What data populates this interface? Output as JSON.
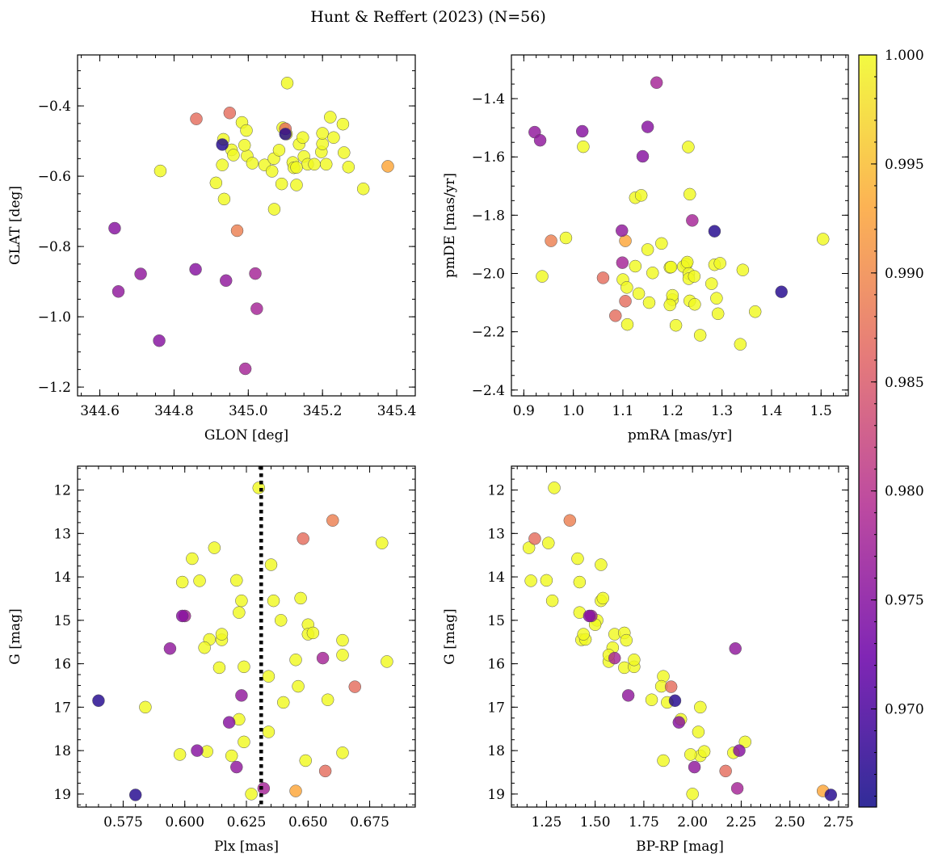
{
  "chart_data": {
    "type": "scatter",
    "title": "Hunt & Reffert (2023) (N=56)",
    "colorbar": {
      "range": [
        0.9655,
        1.0
      ],
      "ticks": [
        0.97,
        0.975,
        0.98,
        0.985,
        0.99,
        0.995,
        1.0
      ],
      "tick_labels": [
        "0.970",
        "0.975",
        "0.980",
        "0.985",
        "0.990",
        "0.995",
        "1.000"
      ],
      "colormap": "plasma",
      "colors": [
        "#0d0887",
        "#6a00a8",
        "#b12a90",
        "#e16462",
        "#fca636",
        "#f0f921"
      ]
    },
    "panels": [
      {
        "id": "glon-glat",
        "xlabel": "GLON [deg]",
        "ylabel": "GLAT [deg]",
        "xlim": [
          344.54,
          345.45
        ],
        "ylim": [
          -1.225,
          -0.255
        ],
        "xticks": [
          344.6,
          344.8,
          345.0,
          345.2,
          345.4
        ],
        "xtick_labels": [
          "344.6",
          "344.8",
          "345.0",
          "345.2",
          "345.4"
        ],
        "yticks": [
          -1.2,
          -1.0,
          -0.8,
          -0.6,
          -0.4
        ],
        "ytick_labels": [
          "−1.2",
          "−1.0",
          "−0.8",
          "−0.6",
          "−0.4"
        ],
        "x_minor": 0.05,
        "y_minor": 0.05
      },
      {
        "id": "pm",
        "xlabel": "pmRA [mas/yr]",
        "ylabel": "pmDE [mas/yr]",
        "xlim": [
          0.875,
          1.555
        ],
        "ylim": [
          -2.42,
          -1.25
        ],
        "xticks": [
          0.9,
          1.0,
          1.1,
          1.2,
          1.3,
          1.4,
          1.5
        ],
        "xtick_labels": [
          "0.9",
          "1.0",
          "1.1",
          "1.2",
          "1.3",
          "1.4",
          "1.5"
        ],
        "yticks": [
          -2.4,
          -2.2,
          -2.0,
          -1.8,
          -1.6,
          -1.4
        ],
        "ytick_labels": [
          "−2.4",
          "−2.2",
          "−2.0",
          "−1.8",
          "−1.6",
          "−1.4"
        ],
        "x_minor": 0.025,
        "y_minor": 0.05
      },
      {
        "id": "plx-g",
        "xlabel": "Plx [mas]",
        "ylabel": "G [mag]",
        "xlim": [
          0.5565,
          0.6935
        ],
        "ylim": [
          19.3,
          11.45
        ],
        "xticks": [
          0.575,
          0.6,
          0.625,
          0.65,
          0.675
        ],
        "xtick_labels": [
          "0.575",
          "0.600",
          "0.625",
          "0.650",
          "0.675"
        ],
        "yticks": [
          12,
          13,
          14,
          15,
          16,
          17,
          18,
          19
        ],
        "ytick_labels": [
          "12",
          "13",
          "14",
          "15",
          "16",
          "17",
          "18",
          "19"
        ],
        "x_minor": 0.005,
        "y_minor": 0.25,
        "vline": 0.631
      },
      {
        "id": "cmd",
        "xlabel": "BP-RP [mag]",
        "ylabel": "G [mag]",
        "xlim": [
          1.07,
          2.8
        ],
        "ylim": [
          19.3,
          11.45
        ],
        "xticks": [
          1.25,
          1.5,
          1.75,
          2.0,
          2.25,
          2.5,
          2.75
        ],
        "xtick_labels": [
          "1.25",
          "1.50",
          "1.75",
          "2.00",
          "2.25",
          "2.50",
          "2.75"
        ],
        "yticks": [
          12,
          13,
          14,
          15,
          16,
          17,
          18,
          19
        ],
        "ytick_labels": [
          "12",
          "13",
          "14",
          "15",
          "16",
          "17",
          "18",
          "19"
        ],
        "x_minor": 0.05,
        "y_minor": 0.25
      }
    ],
    "stars": [
      {
        "glon": 345.105,
        "glat": -0.335,
        "pmra": 1.228,
        "pmde": -1.968,
        "plx": 0.63,
        "g": 11.95,
        "bprp": 1.29,
        "p": 1.0
      },
      {
        "glon": 344.97,
        "glat": -0.755,
        "pmra": 0.955,
        "pmde": -1.888,
        "plx": 0.66,
        "g": 12.7,
        "bprp": 1.37,
        "p": 0.989
      },
      {
        "glon": 344.95,
        "glat": -0.42,
        "pmra": 1.085,
        "pmde": -2.145,
        "plx": 0.648,
        "g": 13.12,
        "bprp": 1.19,
        "p": 0.987
      },
      {
        "glon": 345.376,
        "glat": -0.572,
        "pmra": 1.105,
        "pmde": -1.888,
        "plx": 0.645,
        "g": 18.93,
        "bprp": 2.67,
        "p": 0.993
      },
      {
        "glon": 344.64,
        "glat": -0.748,
        "pmra": 1.14,
        "pmde": -1.598,
        "plx": 0.599,
        "g": 14.9,
        "bprp": 1.47,
        "p": 0.975
      },
      {
        "glon": 344.65,
        "glat": -0.928,
        "pmra": 0.922,
        "pmde": -1.515,
        "plx": 0.594,
        "g": 15.65,
        "bprp": 2.22,
        "p": 0.976
      },
      {
        "glon": 344.71,
        "glat": -0.878,
        "pmra": 0.933,
        "pmde": -1.543,
        "plx": 0.623,
        "g": 16.73,
        "bprp": 1.67,
        "p": 0.976
      },
      {
        "glon": 344.76,
        "glat": -1.068,
        "pmra": 1.018,
        "pmde": -1.512,
        "plx": 0.618,
        "g": 17.35,
        "bprp": 1.93,
        "p": 0.975
      },
      {
        "glon": 344.858,
        "glat": -0.865,
        "pmra": 1.15,
        "pmde": -1.497,
        "plx": 0.605,
        "g": 18.0,
        "bprp": 2.24,
        "p": 0.975
      },
      {
        "glon": 344.94,
        "glat": -0.897,
        "pmra": 1.098,
        "pmde": -1.853,
        "plx": 0.621,
        "g": 18.38,
        "bprp": 2.01,
        "p": 0.976
      },
      {
        "glon": 345.019,
        "glat": -0.877,
        "pmra": 1.168,
        "pmde": -1.345,
        "plx": 0.656,
        "g": 15.87,
        "bprp": 1.6,
        "p": 0.978
      },
      {
        "glon": 345.023,
        "glat": -0.977,
        "pmra": 1.099,
        "pmde": -1.963,
        "plx": 0.632,
        "g": 18.87,
        "bprp": 2.23,
        "p": 0.978
      },
      {
        "glon": 344.992,
        "glat": -1.148,
        "pmra": 1.24,
        "pmde": -1.818,
        "plx": 0.6,
        "g": 14.9,
        "bprp": 1.48,
        "p": 0.978
      },
      {
        "glon": 345.1,
        "glat": -0.48,
        "pmra": 1.285,
        "pmde": -1.855,
        "plx": 0.58,
        "g": 19.02,
        "bprp": 2.71,
        "p": 0.967
      },
      {
        "glon": 344.93,
        "glat": -0.51,
        "pmra": 1.42,
        "pmde": -2.063,
        "plx": 0.565,
        "g": 16.85,
        "bprp": 1.91,
        "p": 0.967
      },
      {
        "glon": 345.1,
        "glat": -0.465,
        "pmra": 1.105,
        "pmde": -2.095,
        "plx": 0.669,
        "g": 16.53,
        "bprp": 1.89,
        "p": 0.987
      },
      {
        "glon": 344.86,
        "glat": -0.437,
        "pmra": 1.06,
        "pmde": -2.015,
        "plx": 0.657,
        "g": 18.47,
        "bprp": 2.17,
        "p": 0.987
      },
      {
        "glon": 344.763,
        "glat": -0.585,
        "pmra": 1.02,
        "pmde": -1.565,
        "plx": 0.68,
        "g": 13.22,
        "bprp": 1.26,
        "p": 1.0
      },
      {
        "glon": 344.913,
        "glat": -0.619,
        "pmra": 0.937,
        "pmde": -2.01,
        "plx": 0.682,
        "g": 15.95,
        "bprp": 1.57,
        "p": 1.0
      },
      {
        "glon": 344.935,
        "glat": -0.665,
        "pmra": 0.985,
        "pmde": -1.878,
        "plx": 0.584,
        "g": 17.0,
        "bprp": 2.04,
        "p": 1.0
      },
      {
        "glon": 344.93,
        "glat": -0.568,
        "pmra": 1.125,
        "pmde": -1.74,
        "plx": 0.603,
        "g": 13.58,
        "bprp": 1.41,
        "p": 1.0
      },
      {
        "glon": 344.933,
        "glat": -0.495,
        "pmra": 1.137,
        "pmde": -1.732,
        "plx": 0.599,
        "g": 14.12,
        "bprp": 1.42,
        "p": 1.0
      },
      {
        "glon": 344.955,
        "glat": -0.525,
        "pmra": 1.125,
        "pmde": -1.975,
        "plx": 0.612,
        "g": 13.33,
        "bprp": 1.16,
        "p": 1.0
      },
      {
        "glon": 344.96,
        "glat": -0.54,
        "pmra": 1.109,
        "pmde": -2.175,
        "plx": 0.606,
        "g": 14.09,
        "bprp": 1.17,
        "p": 1.0
      },
      {
        "glon": 344.983,
        "glat": -0.447,
        "pmra": 1.15,
        "pmde": -1.918,
        "plx": 0.621,
        "g": 14.08,
        "bprp": 1.25,
        "p": 1.0
      },
      {
        "glon": 344.997,
        "glat": -0.542,
        "pmra": 1.178,
        "pmde": -1.897,
        "plx": 0.623,
        "g": 14.55,
        "bprp": 1.28,
        "p": 1.0
      },
      {
        "glon": 345.011,
        "glat": -0.563,
        "pmra": 1.1,
        "pmde": -2.021,
        "plx": 0.636,
        "g": 14.55,
        "bprp": 1.53,
        "p": 1.0
      },
      {
        "glon": 345.044,
        "glat": -0.568,
        "pmra": 1.108,
        "pmde": -2.048,
        "plx": 0.647,
        "g": 14.49,
        "bprp": 1.54,
        "p": 1.0
      },
      {
        "glon": 345.064,
        "glat": -0.586,
        "pmra": 1.132,
        "pmde": -2.069,
        "plx": 0.635,
        "g": 13.72,
        "bprp": 1.53,
        "p": 1.0
      },
      {
        "glon": 345.069,
        "glat": -0.55,
        "pmra": 1.16,
        "pmde": -1.998,
        "plx": 0.622,
        "g": 14.82,
        "bprp": 1.42,
        "p": 1.0
      },
      {
        "glon": 345.083,
        "glat": -0.526,
        "pmra": 1.195,
        "pmde": -1.979,
        "plx": 0.639,
        "g": 15.0,
        "bprp": 1.51,
        "p": 1.0
      },
      {
        "glon": 345.093,
        "glat": -0.462,
        "pmra": 1.197,
        "pmde": -1.978,
        "plx": 0.65,
        "g": 15.1,
        "bprp": 1.5,
        "p": 1.0
      },
      {
        "glon": 345.103,
        "glat": -0.48,
        "pmra": 1.2,
        "pmde": -2.09,
        "plx": 0.615,
        "g": 15.45,
        "bprp": 1.43,
        "p": 1.0
      },
      {
        "glon": 345.12,
        "glat": -0.561,
        "pmra": 1.222,
        "pmde": -1.976,
        "plx": 0.61,
        "g": 15.44,
        "bprp": 1.45,
        "p": 1.0
      },
      {
        "glon": 345.123,
        "glat": -0.576,
        "pmra": 1.23,
        "pmde": -1.961,
        "plx": 0.615,
        "g": 15.32,
        "bprp": 1.44,
        "p": 1.0
      },
      {
        "glon": 345.13,
        "glat": -0.625,
        "pmra": 1.2,
        "pmde": -2.075,
        "plx": 0.65,
        "g": 15.32,
        "bprp": 1.6,
        "p": 1.0
      },
      {
        "glon": 345.137,
        "glat": -0.509,
        "pmra": 1.233,
        "pmde": -2.0,
        "plx": 0.608,
        "g": 15.63,
        "bprp": 1.59,
        "p": 1.0
      },
      {
        "glon": 345.147,
        "glat": -0.49,
        "pmra": 1.285,
        "pmde": -1.97,
        "plx": 0.652,
        "g": 15.29,
        "bprp": 1.65,
        "p": 1.0
      },
      {
        "glon": 345.15,
        "glat": -0.544,
        "pmra": 1.296,
        "pmde": -1.965,
        "plx": 0.664,
        "g": 15.46,
        "bprp": 1.66,
        "p": 1.0
      },
      {
        "glon": 345.16,
        "glat": -0.566,
        "pmra": 1.233,
        "pmde": -2.018,
        "plx": 0.664,
        "g": 15.8,
        "bprp": 1.57,
        "p": 1.0
      },
      {
        "glon": 345.178,
        "glat": -0.566,
        "pmra": 1.244,
        "pmde": -2.01,
        "plx": 0.614,
        "g": 16.09,
        "bprp": 1.65,
        "p": 1.0
      },
      {
        "glon": 345.197,
        "glat": -0.531,
        "pmra": 1.235,
        "pmde": -2.094,
        "plx": 0.624,
        "g": 16.07,
        "bprp": 1.7,
        "p": 1.0
      },
      {
        "glon": 345.2,
        "glat": -0.508,
        "pmra": 1.245,
        "pmde": -2.106,
        "plx": 0.645,
        "g": 15.91,
        "bprp": 1.7,
        "p": 1.0
      },
      {
        "glon": 345.2,
        "glat": -0.478,
        "pmra": 1.195,
        "pmde": -2.108,
        "plx": 0.634,
        "g": 16.29,
        "bprp": 1.85,
        "p": 1.0
      },
      {
        "glon": 345.21,
        "glat": -0.566,
        "pmra": 1.207,
        "pmde": -2.178,
        "plx": 0.646,
        "g": 16.52,
        "bprp": 1.84,
        "p": 1.0
      },
      {
        "glon": 345.221,
        "glat": -0.432,
        "pmra": 1.153,
        "pmde": -2.1,
        "plx": 0.658,
        "g": 16.83,
        "bprp": 1.79,
        "p": 1.0
      },
      {
        "glon": 345.23,
        "glat": -0.49,
        "pmra": 1.289,
        "pmde": -2.085,
        "plx": 0.64,
        "g": 16.89,
        "bprp": 1.87,
        "p": 1.0
      },
      {
        "glon": 345.255,
        "glat": -0.452,
        "pmra": 1.279,
        "pmde": -2.035,
        "plx": 0.622,
        "g": 17.28,
        "bprp": 1.94,
        "p": 1.0
      },
      {
        "glon": 345.258,
        "glat": -0.533,
        "pmra": 1.342,
        "pmde": -1.988,
        "plx": 0.634,
        "g": 17.57,
        "bprp": 2.03,
        "p": 1.0
      },
      {
        "glon": 345.27,
        "glat": -0.574,
        "pmra": 1.367,
        "pmde": -2.131,
        "plx": 0.619,
        "g": 18.12,
        "bprp": 2.04,
        "p": 1.0
      },
      {
        "glon": 345.31,
        "glat": -0.636,
        "pmra": 1.504,
        "pmde": -1.882,
        "plx": 0.609,
        "g": 18.02,
        "bprp": 2.06,
        "p": 1.0
      },
      {
        "glon": 344.995,
        "glat": -0.47,
        "pmra": 1.292,
        "pmde": -2.138,
        "plx": 0.598,
        "g": 18.09,
        "bprp": 1.99,
        "p": 1.0
      },
      {
        "glon": 345.07,
        "glat": -0.694,
        "pmra": 1.232,
        "pmde": -1.566,
        "plx": 0.649,
        "g": 18.23,
        "bprp": 1.85,
        "p": 1.0
      },
      {
        "glon": 345.09,
        "glat": -0.622,
        "pmra": 1.235,
        "pmde": -1.728,
        "plx": 0.664,
        "g": 18.05,
        "bprp": 2.21,
        "p": 1.0
      },
      {
        "glon": 344.99,
        "glat": -0.512,
        "pmra": 1.256,
        "pmde": -2.212,
        "plx": 0.627,
        "g": 19.0,
        "bprp": 2.0,
        "p": 1.0
      },
      {
        "glon": 345.13,
        "glat": -0.575,
        "pmra": 1.337,
        "pmde": -2.243,
        "plx": 0.624,
        "g": 17.8,
        "bprp": 2.27,
        "p": 1.0
      }
    ]
  }
}
